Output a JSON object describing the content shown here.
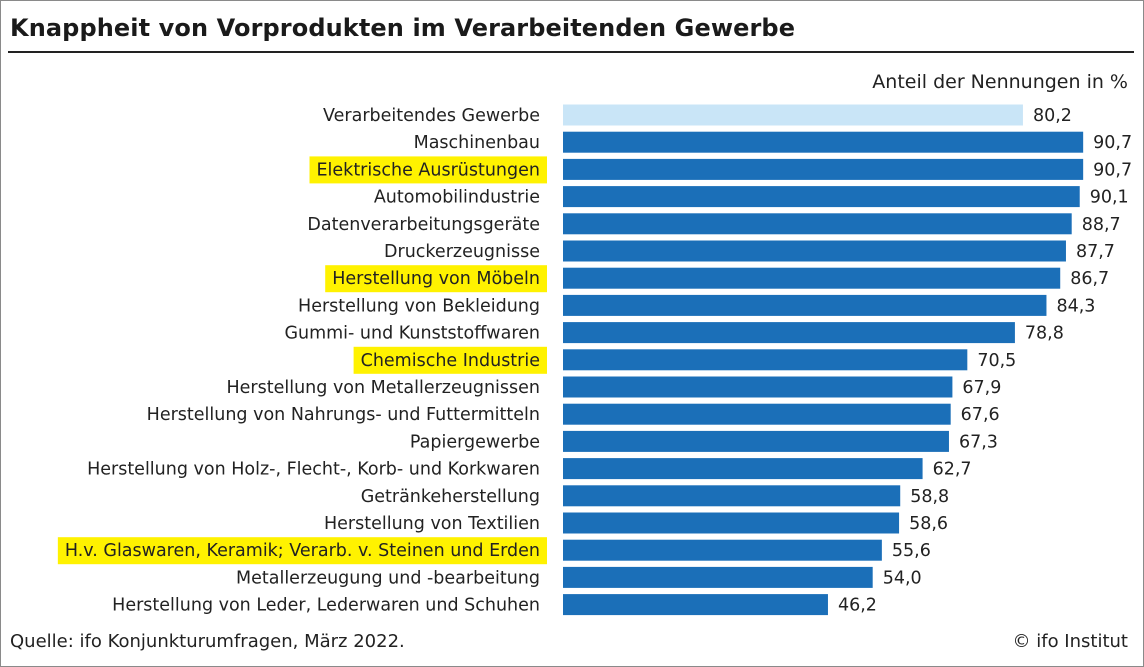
{
  "header": {
    "title": "Knappheit von Vorprodukten im Verarbeitenden Gewerbe",
    "unit_note": "Anteil der Nennungen in %"
  },
  "footer": {
    "source": "Quelle: ifo Konjunkturumfragen, März 2022.",
    "credit": "© ifo Institut"
  },
  "colors": {
    "bar": "#1b6fb8",
    "total_bar": "#c9e5f7",
    "highlight": "#fff200"
  },
  "chart_data": {
    "type": "bar",
    "orientation": "horizontal",
    "title": "Knappheit von Vorprodukten im Verarbeitenden Gewerbe",
    "unit": "Anteil der Nennungen in %",
    "xlim": [
      0,
      100
    ],
    "grid": false,
    "legend": "none",
    "categories": [
      "Verarbeitendes Gewerbe",
      "Maschinenbau",
      "Elektrische Ausrüstungen",
      "Automobilindustrie",
      "Datenverarbeitungsgeräte",
      "Druckerzeugnisse",
      "Herstellung von Möbeln",
      "Herstellung von Bekleidung",
      "Gummi- und Kunststoffwaren",
      "Chemische Industrie",
      "Herstellung von Metallerzeugnissen",
      "Herstellung von Nahrungs- und Futtermitteln",
      "Papiergewerbe",
      "Herstellung von Holz-, Flecht-, Korb- und Korkwaren",
      "Getränkeherstellung",
      "Herstellung von Textilien",
      "H.v. Glaswaren, Keramik; Verarb. v. Steinen und Erden",
      "Metallerzeugung und -bearbeitung",
      "Herstellung von Leder, Lederwaren und Schuhen"
    ],
    "values": [
      80.2,
      90.7,
      90.7,
      90.1,
      88.7,
      87.7,
      86.7,
      84.3,
      78.8,
      70.5,
      67.9,
      67.6,
      67.3,
      62.7,
      58.8,
      58.6,
      55.6,
      54.0,
      46.2
    ],
    "value_labels": [
      "80,2",
      "90,7",
      "90,7",
      "90,1",
      "88,7",
      "87,7",
      "86,7",
      "84,3",
      "78,8",
      "70,5",
      "67,9",
      "67,6",
      "67,3",
      "62,7",
      "58,8",
      "58,6",
      "55,6",
      "54,0",
      "46,2"
    ],
    "highlighted": [
      false,
      false,
      true,
      false,
      false,
      false,
      true,
      false,
      false,
      true,
      false,
      false,
      false,
      false,
      false,
      false,
      true,
      false,
      false
    ],
    "total_index": 0
  }
}
